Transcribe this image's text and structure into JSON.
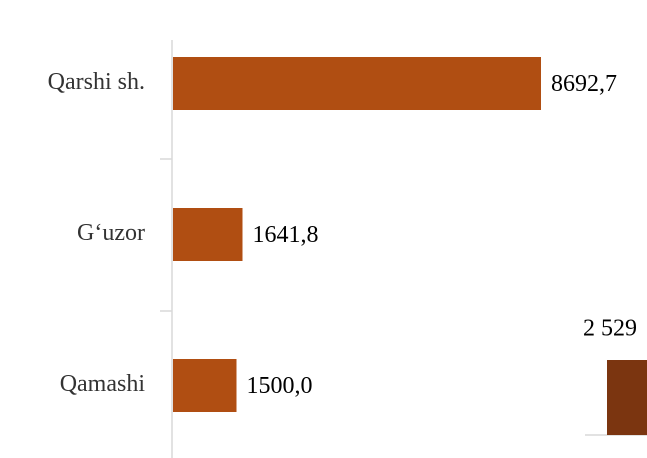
{
  "chart_data": [
    {
      "type": "hbar",
      "categories": [
        "Qarshi sh.",
        "G‘uzor",
        "Qamashi"
      ],
      "values": [
        8692.7,
        1641.8,
        1500.0
      ],
      "value_labels": [
        "8692,7",
        "1641,8",
        "1500,0"
      ],
      "color": "#b04e12"
    },
    {
      "type": "bar",
      "categories": [
        null
      ],
      "values": [
        2529
      ],
      "value_labels": [
        "2 529"
      ],
      "color": "#7b3510"
    }
  ]
}
